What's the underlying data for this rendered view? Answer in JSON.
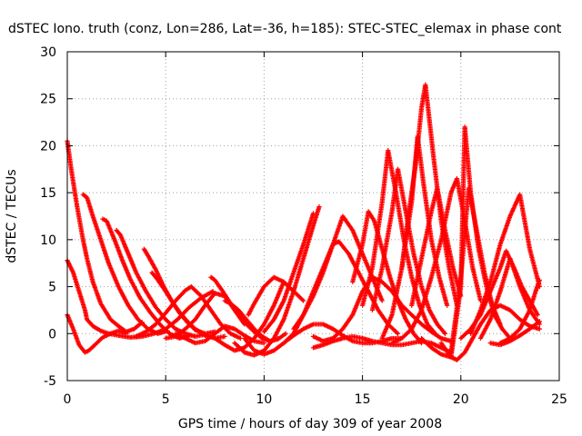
{
  "chart_data": {
    "type": "scatter",
    "title": "dSTEC Iono. truth (conz, Lon=286, Lat=-36, h=185): STEC-STEC_elemax in phase cont",
    "xlabel": "GPS time / hours of day 309 of year 2008",
    "ylabel": "dSTEC  / TECUs",
    "xlim": [
      0,
      25
    ],
    "ylim": [
      -5,
      30
    ],
    "xticks": [
      0,
      5,
      10,
      15,
      20,
      25
    ],
    "yticks": [
      -5,
      0,
      5,
      10,
      15,
      20,
      25,
      30
    ],
    "grid": true,
    "marker": "plus",
    "marker_color": "#ff0000",
    "series": [
      {
        "x": [
          0.0,
          0.3,
          0.6,
          0.9,
          1.0,
          1.3,
          1.7,
          2.1,
          2.6,
          3.2,
          3.8,
          4.4,
          5.0,
          5.6,
          6.2,
          6.8,
          7.4
        ],
        "y": [
          7.8,
          6.5,
          4.5,
          2.5,
          1.5,
          0.8,
          0.3,
          0.0,
          -0.2,
          -0.4,
          -0.3,
          0.0,
          0.5,
          1.5,
          2.8,
          3.8,
          4.5
        ]
      },
      {
        "x": [
          0.0,
          0.2,
          0.5,
          0.8,
          1.0,
          1.3,
          1.7,
          2.2,
          2.6,
          3.0,
          3.4,
          3.8
        ],
        "y": [
          20.5,
          17.5,
          13.5,
          10.0,
          8.0,
          5.5,
          3.2,
          1.5,
          0.8,
          0.2,
          0.5,
          1.2
        ]
      },
      {
        "x": [
          0.0,
          0.3,
          0.6,
          0.9,
          1.1,
          1.4,
          1.8,
          2.2,
          2.6,
          3.0
        ],
        "y": [
          2.0,
          0.5,
          -1.2,
          -2.0,
          -1.8,
          -1.2,
          -0.4,
          0.0,
          0.3,
          0.0
        ]
      },
      {
        "x": [
          0.8,
          1.0,
          1.3,
          1.7,
          2.1,
          2.6,
          3.1,
          3.6,
          4.1,
          4.6,
          5.1
        ],
        "y": [
          14.8,
          14.5,
          12.5,
          10.0,
          7.5,
          5.0,
          3.0,
          1.5,
          0.5,
          0.0,
          0.3
        ]
      },
      {
        "x": [
          1.8,
          2.0,
          2.4,
          2.8,
          3.2,
          3.7,
          4.2,
          4.7,
          5.2,
          5.7,
          6.2
        ],
        "y": [
          12.2,
          12.0,
          10.0,
          7.8,
          5.8,
          3.8,
          2.3,
          1.0,
          0.0,
          -0.5,
          -0.2
        ]
      },
      {
        "x": [
          2.5,
          2.7,
          3.1,
          3.5,
          4.0,
          4.5,
          5.0,
          5.5,
          6.0,
          6.5,
          7.0
        ],
        "y": [
          11.0,
          10.5,
          8.5,
          6.5,
          4.5,
          2.8,
          1.5,
          0.5,
          0.0,
          -0.3,
          -0.1
        ]
      },
      {
        "x": [
          3.9,
          4.1,
          4.5,
          4.9,
          5.3,
          5.7,
          6.1,
          6.5,
          7.0,
          7.5
        ],
        "y": [
          9.0,
          8.3,
          6.8,
          5.0,
          3.5,
          2.2,
          1.2,
          0.4,
          0.0,
          0.2
        ]
      },
      {
        "x": [
          4.3,
          4.5,
          4.9,
          5.3,
          5.7,
          6.1,
          6.5,
          7.0,
          7.5,
          8.0
        ],
        "y": [
          6.5,
          6.0,
          4.8,
          3.5,
          2.3,
          1.3,
          0.5,
          -0.2,
          -0.5,
          -0.3
        ]
      },
      {
        "x": [
          3.5,
          4.0,
          4.5,
          5.0,
          5.5,
          6.0,
          6.3,
          6.8,
          7.3,
          7.8,
          8.3,
          8.8
        ],
        "y": [
          -0.3,
          0.2,
          1.0,
          2.2,
          3.5,
          4.6,
          5.0,
          4.0,
          2.5,
          1.0,
          0.0,
          -0.5
        ]
      },
      {
        "x": [
          5.0,
          5.5,
          6.0,
          6.5,
          7.0,
          7.5,
          8.0,
          8.5,
          9.0
        ],
        "y": [
          -0.5,
          -0.3,
          0.5,
          1.5,
          3.0,
          4.3,
          4.0,
          2.5,
          1.0
        ]
      },
      {
        "x": [
          7.3,
          7.5,
          7.9,
          8.3,
          8.7,
          9.1,
          9.5,
          9.9,
          10.3,
          10.7
        ],
        "y": [
          6.0,
          5.7,
          4.5,
          3.2,
          2.0,
          1.0,
          0.2,
          -0.5,
          -0.8,
          -0.5
        ]
      },
      {
        "x": [
          8.0,
          8.3,
          8.7,
          9.1,
          9.5,
          9.9,
          10.3,
          10.7,
          11.1
        ],
        "y": [
          3.5,
          3.2,
          2.5,
          1.5,
          0.5,
          -0.3,
          -0.8,
          -0.6,
          0.0
        ]
      },
      {
        "x": [
          7.5,
          8.0,
          8.5,
          9.0,
          9.5,
          10.0,
          10.5,
          11.0
        ],
        "y": [
          -0.5,
          -1.2,
          -1.8,
          -1.5,
          -0.5,
          1.0,
          3.0,
          5.5
        ]
      },
      {
        "x": [
          8.5,
          9.0,
          9.5,
          10.0,
          10.5,
          11.0,
          11.5,
          12.0,
          12.5,
          12.8
        ],
        "y": [
          -1.0,
          -2.0,
          -2.3,
          -1.8,
          -0.5,
          1.5,
          4.5,
          8.0,
          11.5,
          13.5
        ]
      },
      {
        "x": [
          10.0,
          10.5,
          11.0,
          11.5,
          12.0,
          12.5
        ],
        "y": [
          0.2,
          1.5,
          3.5,
          6.5,
          9.5,
          12.8
        ]
      },
      {
        "x": [
          9.2,
          9.5,
          10.0,
          10.5,
          11.0,
          11.5,
          12.0
        ],
        "y": [
          2.0,
          3.2,
          5.0,
          6.0,
          5.5,
          4.5,
          3.5
        ]
      },
      {
        "x": [
          9.0,
          9.5,
          10.0,
          10.5,
          11.0,
          11.5,
          12.0,
          12.5,
          13.0,
          13.5,
          14.0,
          14.5,
          15.0,
          15.5,
          16.0,
          16.5,
          17.0
        ],
        "y": [
          -0.5,
          -1.8,
          -2.2,
          -1.8,
          -1.0,
          -0.2,
          0.5,
          1.0,
          1.0,
          0.5,
          -0.2,
          -0.8,
          -1.0,
          -1.0,
          -0.8,
          -0.5,
          -0.5
        ]
      },
      {
        "x": [
          11.0,
          11.5,
          12.0,
          12.5,
          13.0,
          13.5,
          13.8,
          14.3,
          14.8,
          15.3,
          15.8,
          16.3,
          16.8
        ],
        "y": [
          -1.0,
          0.0,
          2.0,
          4.5,
          7.0,
          9.5,
          9.8,
          8.5,
          6.5,
          4.5,
          2.5,
          1.0,
          0.0
        ]
      },
      {
        "x": [
          11.5,
          12.0,
          12.5,
          13.0,
          13.5,
          14.0,
          14.5,
          15.0,
          15.5,
          16.0
        ],
        "y": [
          0.5,
          2.0,
          4.0,
          6.5,
          9.5,
          12.5,
          11.0,
          8.5,
          6.0,
          3.5
        ]
      },
      {
        "x": [
          12.5,
          13.0,
          13.5,
          14.0,
          14.5,
          15.0,
          15.5,
          16.0,
          16.5,
          17.0,
          17.5,
          18.0,
          18.5,
          19.0,
          19.5
        ],
        "y": [
          -0.3,
          -0.8,
          -0.5,
          0.5,
          2.0,
          4.5,
          6.0,
          5.5,
          4.5,
          3.0,
          2.0,
          1.0,
          0.2,
          -0.5,
          -0.8
        ]
      },
      {
        "x": [
          14.5,
          15.0,
          15.3,
          15.6,
          16.0,
          16.4,
          16.8,
          17.2,
          17.6,
          18.0
        ],
        "y": [
          5.5,
          9.5,
          13.0,
          12.0,
          9.0,
          6.0,
          3.5,
          1.5,
          0.0,
          -1.0
        ]
      },
      {
        "x": [
          15.0,
          15.5,
          16.0,
          16.3,
          16.7,
          17.1,
          17.5,
          17.9,
          18.3,
          18.7
        ],
        "y": [
          3.0,
          7.0,
          14.0,
          19.5,
          15.0,
          10.0,
          6.0,
          3.0,
          1.0,
          0.0
        ]
      },
      {
        "x": [
          15.5,
          16.0,
          16.5,
          16.8,
          17.2,
          17.6,
          18.0,
          18.4,
          18.8,
          19.2
        ],
        "y": [
          2.5,
          7.0,
          13.0,
          17.5,
          13.0,
          8.5,
          5.0,
          2.5,
          1.0,
          0.0
        ]
      },
      {
        "x": [
          16.0,
          16.5,
          17.0,
          17.3,
          17.7,
          18.0,
          18.2,
          18.6,
          19.0,
          19.4,
          19.8
        ],
        "y": [
          -0.5,
          2.0,
          7.0,
          12.0,
          18.0,
          24.0,
          26.5,
          19.0,
          12.0,
          7.0,
          3.0
        ]
      },
      {
        "x": [
          17.0,
          17.5,
          17.8,
          18.1,
          18.5,
          18.9,
          19.3
        ],
        "y": [
          7.0,
          14.0,
          21.0,
          16.0,
          10.0,
          6.0,
          3.0
        ]
      },
      {
        "x": [
          17.5,
          18.0,
          18.5,
          18.8,
          19.2,
          19.6,
          20.0
        ],
        "y": [
          3.0,
          8.0,
          13.0,
          15.5,
          11.0,
          7.0,
          4.0
        ]
      },
      {
        "x": [
          16.5,
          17.0,
          17.5,
          18.0,
          18.5,
          19.0,
          19.5,
          19.8,
          20.2,
          20.6,
          21.0
        ],
        "y": [
          -1.0,
          -0.5,
          0.5,
          2.5,
          6.0,
          10.0,
          15.0,
          16.5,
          12.0,
          7.0,
          3.5
        ]
      },
      {
        "x": [
          18.0,
          18.5,
          19.0,
          19.5,
          20.0,
          20.2,
          20.5,
          20.9,
          21.3,
          21.7,
          22.1,
          22.5
        ],
        "y": [
          -0.5,
          -1.5,
          -2.2,
          -2.5,
          5.0,
          22.0,
          15.0,
          9.0,
          5.0,
          2.0,
          0.5,
          -0.5
        ]
      },
      {
        "x": [
          19.0,
          19.5,
          20.0,
          20.4,
          20.8,
          21.2,
          21.6,
          22.0
        ],
        "y": [
          -1.5,
          -2.0,
          6.0,
          15.5,
          11.0,
          6.5,
          3.0,
          1.0
        ]
      },
      {
        "x": [
          19.0,
          19.5,
          19.8,
          20.2,
          20.6,
          21.0,
          21.5,
          22.0,
          22.5,
          23.0,
          23.5,
          24.0
        ],
        "y": [
          -1.0,
          -2.5,
          -2.8,
          -2.0,
          -0.5,
          1.0,
          2.5,
          3.0,
          2.5,
          1.5,
          0.8,
          0.5
        ]
      },
      {
        "x": [
          20.0,
          20.5,
          21.0,
          21.5,
          22.0,
          22.3,
          22.7,
          23.1,
          23.5,
          23.9
        ],
        "y": [
          -0.5,
          0.5,
          2.0,
          4.5,
          7.0,
          8.8,
          7.0,
          5.0,
          3.5,
          2.0
        ]
      },
      {
        "x": [
          20.5,
          21.0,
          21.5,
          22.0,
          22.5,
          23.0,
          23.5,
          24.0
        ],
        "y": [
          0.0,
          2.5,
          5.5,
          9.5,
          12.5,
          14.8,
          9.0,
          5.0
        ]
      },
      {
        "x": [
          21.0,
          21.5,
          22.0,
          22.5,
          23.0,
          23.5,
          24.0
        ],
        "y": [
          -0.5,
          1.5,
          4.5,
          8.0,
          5.0,
          2.5,
          1.0
        ]
      },
      {
        "x": [
          21.5,
          22.0,
          22.5,
          23.0,
          23.5,
          24.0
        ],
        "y": [
          -1.0,
          -1.2,
          -0.8,
          -0.2,
          0.5,
          1.3
        ]
      },
      {
        "x": [
          22.0,
          22.5,
          23.0,
          23.5,
          23.8,
          24.0
        ],
        "y": [
          -1.0,
          -0.5,
          0.5,
          2.5,
          4.5,
          5.7
        ]
      },
      {
        "x": [
          5.5,
          6.0,
          6.5,
          7.0,
          7.5,
          8.0,
          8.5,
          9.0,
          9.5,
          10.0
        ],
        "y": [
          0.0,
          -0.5,
          -1.0,
          -0.8,
          0.0,
          0.8,
          0.5,
          -0.2,
          -0.8,
          -1.0
        ]
      },
      {
        "x": [
          12.5,
          13.0,
          13.5,
          14.0,
          14.5,
          15.0,
          15.5,
          16.0,
          16.5,
          17.0,
          17.5,
          18.0,
          18.5,
          19.0
        ],
        "y": [
          -1.5,
          -1.2,
          -0.8,
          -0.5,
          -0.3,
          -0.5,
          -0.8,
          -1.0,
          -1.2,
          -1.2,
          -1.0,
          -0.8,
          -1.0,
          -1.5
        ]
      }
    ]
  }
}
